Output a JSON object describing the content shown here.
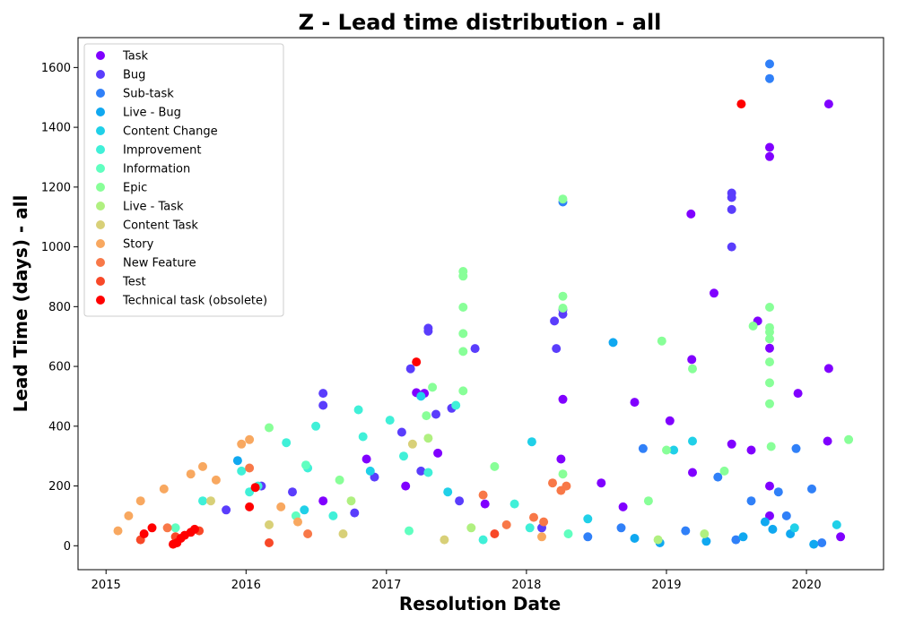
{
  "chart_data": {
    "type": "scatter",
    "title": "Z - Lead time distribution - all",
    "xlabel": "Resolution Date",
    "ylabel": "Lead Time (days) - all",
    "x_type": "date",
    "xlim": [
      "2014-10-20",
      "2020-07-20"
    ],
    "ylim": [
      -80,
      1700
    ],
    "x_ticks": [
      "2015-01-01",
      "2016-01-01",
      "2017-01-01",
      "2018-01-01",
      "2019-01-01",
      "2020-01-01"
    ],
    "x_tick_labels": [
      "2015",
      "2016",
      "2017",
      "2018",
      "2019",
      "2020"
    ],
    "y_ticks": [
      0,
      200,
      400,
      600,
      800,
      1000,
      1200,
      1400,
      1600
    ],
    "grid": false,
    "legend_position": "top-left",
    "series": [
      {
        "name": "Task",
        "color": "#8000ff",
        "points": [
          [
            "2020-02-28",
            1478
          ],
          [
            "2019-09-27",
            1333
          ],
          [
            "2019-09-27",
            1302
          ],
          [
            "2019-03-06",
            1110
          ],
          [
            "2019-05-05",
            845
          ],
          [
            "2019-08-27",
            752
          ],
          [
            "2019-09-27",
            661
          ],
          [
            "2019-03-08",
            623
          ],
          [
            "2020-02-28",
            593
          ],
          [
            "2017-03-20",
            512
          ],
          [
            "2017-04-10",
            510
          ],
          [
            "2018-04-06",
            490
          ],
          [
            "2018-10-10",
            480
          ],
          [
            "2019-12-10",
            510
          ],
          [
            "2019-01-10",
            418
          ],
          [
            "2017-05-15",
            310
          ],
          [
            "2016-11-10",
            290
          ],
          [
            "2018-04-01",
            290
          ],
          [
            "2019-03-10",
            245
          ],
          [
            "2018-07-15",
            210
          ],
          [
            "2019-08-10",
            320
          ],
          [
            "2019-06-20",
            340
          ],
          [
            "2020-02-25",
            350
          ],
          [
            "2017-09-15",
            140
          ],
          [
            "2018-09-10",
            130
          ],
          [
            "2016-07-20",
            150
          ],
          [
            "2020-03-30",
            30
          ],
          [
            "2019-09-27",
            200
          ],
          [
            "2019-09-27",
            100
          ],
          [
            "2017-02-20",
            200
          ]
        ]
      },
      {
        "name": "Bug",
        "color": "#5a3dfc",
        "points": [
          [
            "2019-06-20",
            1180
          ],
          [
            "2019-06-20",
            1165
          ],
          [
            "2019-06-20",
            1125
          ],
          [
            "2019-06-20",
            1000
          ],
          [
            "2018-04-06",
            790
          ],
          [
            "2018-04-06",
            775
          ],
          [
            "2018-03-15",
            752
          ],
          [
            "2017-04-20",
            728
          ],
          [
            "2017-04-20",
            718
          ],
          [
            "2017-08-20",
            660
          ],
          [
            "2018-03-20",
            660
          ],
          [
            "2017-03-05",
            592
          ],
          [
            "2016-07-20",
            510
          ],
          [
            "2016-07-20",
            470
          ],
          [
            "2017-06-20",
            460
          ],
          [
            "2017-05-10",
            440
          ],
          [
            "2017-02-10",
            380
          ],
          [
            "2016-12-01",
            230
          ],
          [
            "2016-05-01",
            180
          ],
          [
            "2017-04-01",
            250
          ],
          [
            "2015-11-10",
            120
          ],
          [
            "2016-02-10",
            200
          ],
          [
            "2016-10-10",
            110
          ],
          [
            "2017-07-10",
            150
          ],
          [
            "2018-02-10",
            60
          ]
        ]
      },
      {
        "name": "Sub-task",
        "color": "#3080f8",
        "points": [
          [
            "2019-09-27",
            1612
          ],
          [
            "2019-09-27",
            1563
          ],
          [
            "2018-04-06",
            1150
          ],
          [
            "2019-12-05",
            325
          ],
          [
            "2018-11-01",
            325
          ],
          [
            "2019-05-15",
            230
          ],
          [
            "2020-01-15",
            190
          ],
          [
            "2019-08-10",
            150
          ],
          [
            "2019-10-20",
            180
          ],
          [
            "2018-09-05",
            60
          ],
          [
            "2019-11-10",
            100
          ],
          [
            "2019-02-20",
            50
          ],
          [
            "2018-06-10",
            30
          ],
          [
            "2019-07-01",
            20
          ],
          [
            "2020-02-10",
            10
          ]
        ]
      },
      {
        "name": "Live - Bug",
        "color": "#10a8f0",
        "points": [
          [
            "2018-08-15",
            680
          ],
          [
            "2015-12-10",
            285
          ],
          [
            "2019-09-15",
            80
          ],
          [
            "2019-11-20",
            40
          ],
          [
            "2018-10-10",
            25
          ],
          [
            "2019-04-15",
            15
          ],
          [
            "2020-01-20",
            5
          ],
          [
            "2019-07-20",
            30
          ],
          [
            "2018-12-15",
            10
          ],
          [
            "2019-10-05",
            55
          ]
        ]
      },
      {
        "name": "Content Change",
        "color": "#20d0e8",
        "points": [
          [
            "2018-01-15",
            348
          ],
          [
            "2017-04-01",
            500
          ],
          [
            "2016-11-20",
            250
          ],
          [
            "2017-06-10",
            180
          ],
          [
            "2019-01-20",
            320
          ],
          [
            "2019-03-10",
            350
          ],
          [
            "2020-03-20",
            70
          ],
          [
            "2016-06-01",
            120
          ],
          [
            "2018-06-10",
            90
          ],
          [
            "2019-12-01",
            60
          ]
        ]
      },
      {
        "name": "Improvement",
        "color": "#40f0d8",
        "points": [
          [
            "2016-10-20",
            455
          ],
          [
            "2016-07-01",
            400
          ],
          [
            "2017-01-10",
            420
          ],
          [
            "2016-04-15",
            345
          ],
          [
            "2016-11-01",
            365
          ],
          [
            "2017-07-01",
            470
          ],
          [
            "2016-06-10",
            260
          ],
          [
            "2015-12-20",
            250
          ],
          [
            "2017-02-15",
            300
          ],
          [
            "2016-02-01",
            200
          ],
          [
            "2017-12-01",
            140
          ],
          [
            "2016-01-10",
            180
          ],
          [
            "2015-09-10",
            150
          ],
          [
            "2017-04-20",
            245
          ],
          [
            "2016-08-15",
            100
          ],
          [
            "2018-01-10",
            60
          ],
          [
            "2017-09-10",
            20
          ]
        ]
      },
      {
        "name": "Information",
        "color": "#60ffc0",
        "points": [
          [
            "2016-06-05",
            270
          ],
          [
            "2016-05-10",
            100
          ],
          [
            "2017-03-01",
            50
          ],
          [
            "2018-04-20",
            40
          ],
          [
            "2015-07-01",
            60
          ]
        ]
      },
      {
        "name": "Epic",
        "color": "#88ff98",
        "points": [
          [
            "2018-04-06",
            1160
          ],
          [
            "2017-07-20",
            918
          ],
          [
            "2017-07-20",
            902
          ],
          [
            "2018-04-06",
            835
          ],
          [
            "2018-04-06",
            795
          ],
          [
            "2017-07-20",
            798
          ],
          [
            "2019-09-27",
            798
          ],
          [
            "2019-09-27",
            730
          ],
          [
            "2019-09-27",
            715
          ],
          [
            "2019-08-15",
            735
          ],
          [
            "2017-07-20",
            710
          ],
          [
            "2019-09-27",
            692
          ],
          [
            "2018-12-20",
            685
          ],
          [
            "2017-07-20",
            650
          ],
          [
            "2019-09-27",
            615
          ],
          [
            "2019-03-10",
            592
          ],
          [
            "2019-09-27",
            545
          ],
          [
            "2017-05-01",
            530
          ],
          [
            "2017-07-20",
            518
          ],
          [
            "2019-09-27",
            475
          ],
          [
            "2017-04-15",
            435
          ],
          [
            "2016-03-01",
            395
          ],
          [
            "2019-10-01",
            332
          ],
          [
            "2018-04-06",
            240
          ],
          [
            "2017-10-10",
            265
          ],
          [
            "2019-01-01",
            320
          ],
          [
            "2020-04-20",
            355
          ],
          [
            "2016-09-01",
            220
          ],
          [
            "2019-06-01",
            250
          ],
          [
            "2018-11-15",
            150
          ]
        ]
      },
      {
        "name": "Live - Task",
        "color": "#b0f080",
        "points": [
          [
            "2017-04-20",
            360
          ],
          [
            "2016-10-01",
            150
          ],
          [
            "2017-08-10",
            60
          ],
          [
            "2019-04-10",
            40
          ],
          [
            "2018-12-10",
            20
          ]
        ]
      },
      {
        "name": "Content Task",
        "color": "#d8d078",
        "points": [
          [
            "2017-03-10",
            340
          ],
          [
            "2016-09-10",
            40
          ],
          [
            "2015-10-01",
            150
          ],
          [
            "2016-03-01",
            70
          ],
          [
            "2017-06-01",
            20
          ]
        ]
      },
      {
        "name": "Story",
        "color": "#f8a860",
        "points": [
          [
            "2016-01-10",
            355
          ],
          [
            "2015-12-20",
            340
          ],
          [
            "2015-09-10",
            265
          ],
          [
            "2015-08-10",
            240
          ],
          [
            "2015-10-15",
            220
          ],
          [
            "2015-06-01",
            190
          ],
          [
            "2015-04-01",
            150
          ],
          [
            "2016-04-01",
            130
          ],
          [
            "2015-03-01",
            100
          ],
          [
            "2016-05-15",
            80
          ],
          [
            "2015-02-01",
            50
          ],
          [
            "2018-02-10",
            30
          ]
        ]
      },
      {
        "name": "New Feature",
        "color": "#f87848",
        "points": [
          [
            "2018-03-10",
            210
          ],
          [
            "2018-04-15",
            200
          ],
          [
            "2017-09-10",
            170
          ],
          [
            "2018-04-01",
            185
          ],
          [
            "2016-01-10",
            260
          ],
          [
            "2018-01-20",
            95
          ],
          [
            "2017-11-10",
            70
          ],
          [
            "2018-02-15",
            80
          ],
          [
            "2015-06-10",
            60
          ],
          [
            "2016-06-10",
            40
          ]
        ]
      },
      {
        "name": "Test",
        "color": "#f84828",
        "points": [
          [
            "2015-07-01",
            30
          ],
          [
            "2015-04-01",
            20
          ],
          [
            "2017-10-10",
            40
          ],
          [
            "2016-03-01",
            10
          ],
          [
            "2015-09-01",
            50
          ]
        ]
      },
      {
        "name": "Technical task (obsolete)",
        "color": "#ff0000",
        "points": [
          [
            "2019-07-15",
            1478
          ],
          [
            "2017-03-20",
            615
          ],
          [
            "2016-01-25",
            195
          ],
          [
            "2016-01-10",
            130
          ],
          [
            "2015-05-01",
            60
          ],
          [
            "2015-07-15",
            25
          ],
          [
            "2015-07-05",
            10
          ],
          [
            "2015-07-25",
            35
          ],
          [
            "2015-08-10",
            45
          ],
          [
            "2015-06-25",
            5
          ],
          [
            "2015-08-20",
            55
          ],
          [
            "2015-04-10",
            40
          ]
        ]
      }
    ]
  }
}
